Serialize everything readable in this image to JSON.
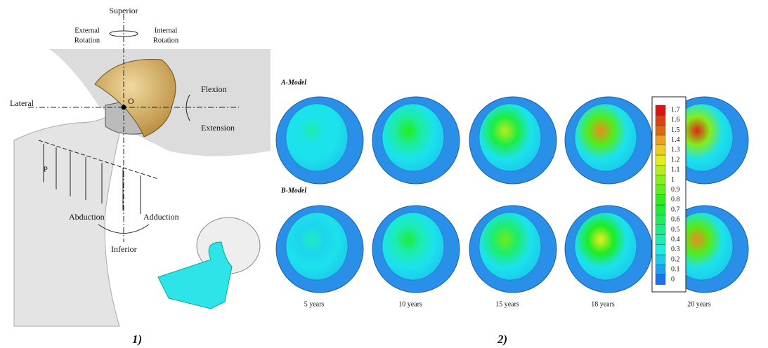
{
  "panel1": {
    "superior": "Superior",
    "external_rotation": [
      "External",
      "Rotation"
    ],
    "internal_rotation": [
      "Internal",
      "Rotation"
    ],
    "lateral": "Lateral",
    "origin": "O",
    "flexion": "Flexion",
    "extension": "Extension",
    "force": "P",
    "abduction": "Abduction",
    "adduction": "Adduction",
    "inferior": "Inferior",
    "label": "1)"
  },
  "panel2": {
    "rows": [
      "A-Model",
      "B-Model"
    ],
    "columns": [
      "5 years",
      "10 years",
      "15 years",
      "18 years",
      "20 years"
    ],
    "colorbar_ticks": [
      0,
      0.1,
      0.2,
      0.3,
      0.4,
      0.5,
      0.6,
      0.7,
      0.8,
      0.9,
      1,
      1.1,
      1.2,
      1.3,
      1.4,
      1.5,
      1.6,
      1.7
    ],
    "label": "2)"
  }
}
